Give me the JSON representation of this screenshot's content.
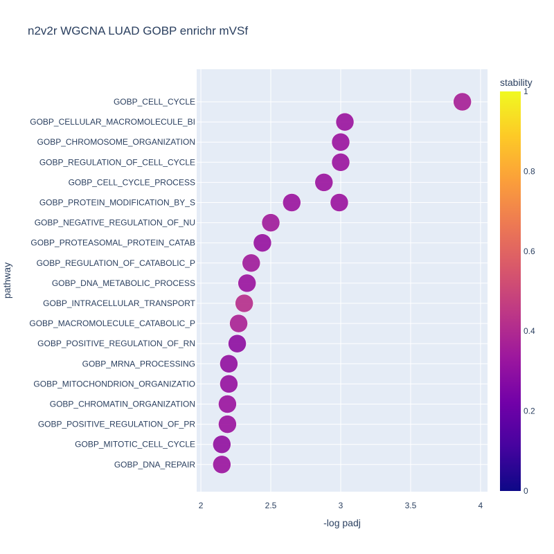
{
  "chart_data": {
    "type": "scatter",
    "title": "n2v2r WGCNA LUAD GOBP enrichr mVSf",
    "xlabel": "-log padj",
    "ylabel": "pathway",
    "xlim": [
      1.97,
      4.05
    ],
    "x_ticks": [
      "2",
      "2.5",
      "3",
      "3.5",
      "4"
    ],
    "x_tick_values": [
      2,
      2.5,
      3,
      3.5,
      4
    ],
    "grid": true,
    "categories": [
      "GOBP_CELL_CYCLE",
      "GOBP_CELLULAR_MACROMOLECULE_BI",
      "GOBP_CHROMOSOME_ORGANIZATION",
      "GOBP_REGULATION_OF_CELL_CYCLE",
      "GOBP_CELL_CYCLE_PROCESS",
      "GOBP_PROTEIN_MODIFICATION_BY_S",
      "GOBP_NEGATIVE_REGULATION_OF_NU",
      "GOBP_PROTEASOMAL_PROTEIN_CATAB",
      "GOBP_REGULATION_OF_CATABOLIC_P",
      "GOBP_DNA_METABOLIC_PROCESS",
      "GOBP_INTRACELLULAR_TRANSPORT",
      "GOBP_MACROMOLECULE_CATABOLIC_P",
      "GOBP_POSITIVE_REGULATION_OF_RN",
      "GOBP_MRNA_PROCESSING",
      "GOBP_MITOCHONDRION_ORGANIZATIO",
      "GOBP_CHROMATIN_ORGANIZATION",
      "GOBP_POSITIVE_REGULATION_OF_PR",
      "GOBP_MITOTIC_CELL_CYCLE",
      "GOBP_DNA_REPAIR"
    ],
    "points": [
      {
        "pathway": "GOBP_CELL_CYCLE",
        "x": 3.87,
        "stability": 0.37
      },
      {
        "pathway": "GOBP_CELLULAR_MACROMOLECULE_BI",
        "x": 3.03,
        "stability": 0.33
      },
      {
        "pathway": "GOBP_CHROMOSOME_ORGANIZATION",
        "x": 3.0,
        "stability": 0.33
      },
      {
        "pathway": "GOBP_REGULATION_OF_CELL_CYCLE",
        "x": 3.0,
        "stability": 0.33
      },
      {
        "pathway": "GOBP_CELL_CYCLE_PROCESS",
        "x": 2.88,
        "stability": 0.33
      },
      {
        "pathway": "GOBP_PROTEIN_MODIFICATION_BY_S",
        "x": 2.65,
        "stability": 0.33
      },
      {
        "pathway": "GOBP_PROTEIN_MODIFICATION_BY_S",
        "x": 2.99,
        "stability": 0.33
      },
      {
        "pathway": "GOBP_NEGATIVE_REGULATION_OF_NU",
        "x": 2.5,
        "stability": 0.35
      },
      {
        "pathway": "GOBP_PROTEASOMAL_PROTEIN_CATAB",
        "x": 2.44,
        "stability": 0.32
      },
      {
        "pathway": "GOBP_REGULATION_OF_CATABOLIC_P",
        "x": 2.36,
        "stability": 0.35
      },
      {
        "pathway": "GOBP_DNA_METABOLIC_PROCESS",
        "x": 2.33,
        "stability": 0.33
      },
      {
        "pathway": "GOBP_INTRACELLULAR_TRANSPORT",
        "x": 2.31,
        "stability": 0.42
      },
      {
        "pathway": "GOBP_MACROMOLECULE_CATABOLIC_P",
        "x": 2.27,
        "stability": 0.38
      },
      {
        "pathway": "GOBP_POSITIVE_REGULATION_OF_RN",
        "x": 2.26,
        "stability": 0.3
      },
      {
        "pathway": "GOBP_MRNA_PROCESSING",
        "x": 2.2,
        "stability": 0.31
      },
      {
        "pathway": "GOBP_MITOCHONDRION_ORGANIZATIO",
        "x": 2.2,
        "stability": 0.32
      },
      {
        "pathway": "GOBP_CHROMATIN_ORGANIZATION",
        "x": 2.19,
        "stability": 0.33
      },
      {
        "pathway": "GOBP_POSITIVE_REGULATION_OF_PR",
        "x": 2.19,
        "stability": 0.33
      },
      {
        "pathway": "GOBP_MITOTIC_CELL_CYCLE",
        "x": 2.15,
        "stability": 0.31
      },
      {
        "pathway": "GOBP_DNA_REPAIR",
        "x": 2.15,
        "stability": 0.33
      }
    ],
    "colorbar": {
      "title": "stability",
      "range": [
        0,
        1
      ],
      "ticks": [
        "0",
        "0.2",
        "0.4",
        "0.6",
        "0.8",
        "1"
      ],
      "tick_values": [
        0,
        0.2,
        0.4,
        0.6,
        0.8,
        1
      ],
      "colorscale": [
        "#0d0887",
        "#46039f",
        "#7201a8",
        "#9c179e",
        "#bd3786",
        "#d8576b",
        "#ed7953",
        "#fb9f3a",
        "#fdca26",
        "#f0f921"
      ]
    },
    "colors": {
      "plot_background": "#e5ecf6",
      "grid": "#ffffff",
      "text": "#2a3f5f"
    }
  }
}
